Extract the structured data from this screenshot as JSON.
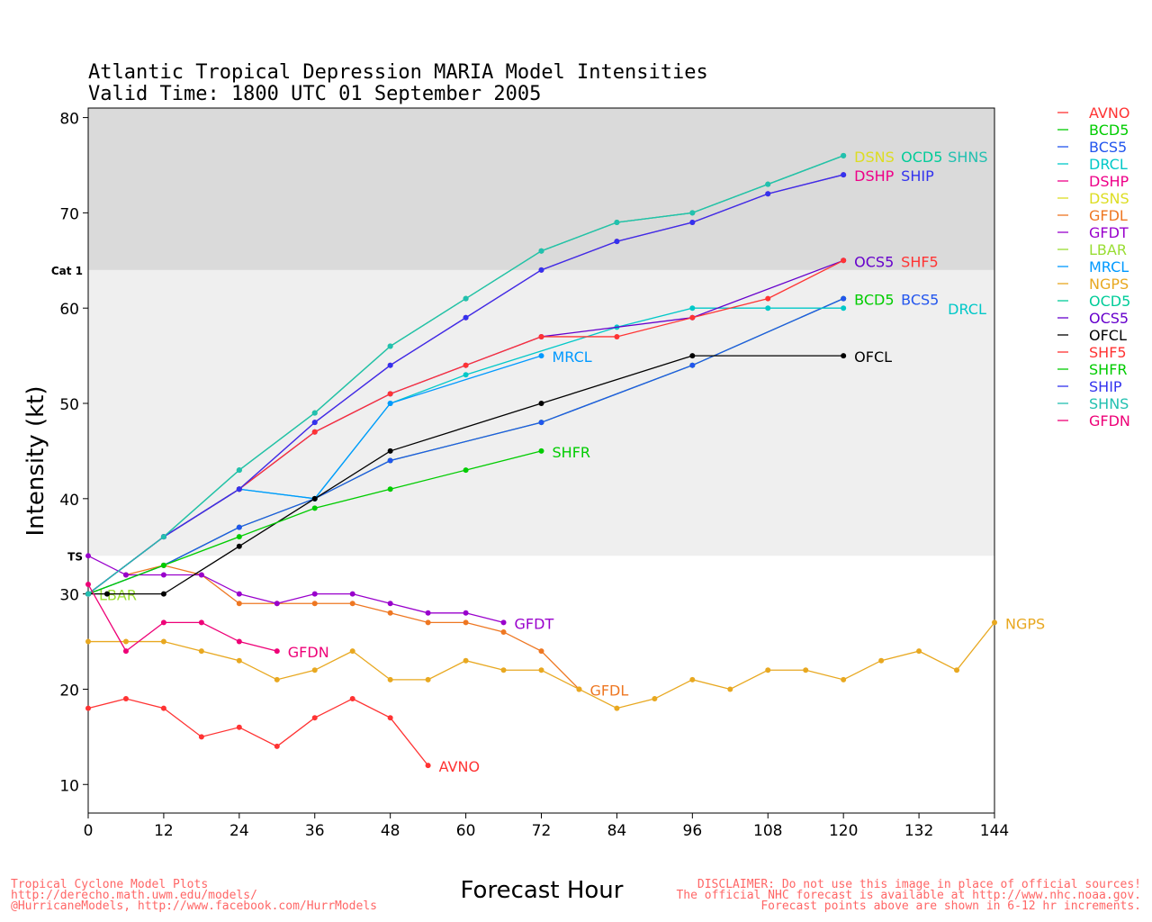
{
  "chart_data": {
    "type": "line",
    "title": "Atlantic Tropical Depression MARIA Model Intensities",
    "subtitle": "Valid Time: 1800 UTC 01 September 2005",
    "xlabel": "Forecast Hour",
    "ylabel": "Intensity (kt)",
    "xlim": [
      0,
      144
    ],
    "ylim": [
      7,
      81
    ],
    "xticks": [
      0,
      12,
      24,
      36,
      48,
      60,
      72,
      84,
      96,
      108,
      120,
      132,
      144
    ],
    "yticks": [
      10,
      20,
      30,
      40,
      50,
      60,
      70,
      80
    ],
    "bands": [
      {
        "label": "TS",
        "from": 34,
        "to": 64,
        "color": "#efefef"
      },
      {
        "label": "Cat 1",
        "from": 64,
        "to": 81,
        "color": "#dadada"
      }
    ],
    "legend_position": "right",
    "series": [
      {
        "name": "AVNO",
        "color": "#ff3333",
        "x": [
          0,
          6,
          12,
          18,
          24,
          30,
          36,
          42,
          48,
          54
        ],
        "y": [
          18,
          19,
          18,
          15,
          16,
          14,
          17,
          19,
          17,
          12
        ],
        "end_label": true
      },
      {
        "name": "BCD5",
        "color": "#00cc00",
        "x": [
          0,
          12,
          24,
          36,
          48,
          72,
          96,
          120
        ],
        "y": [
          30,
          33,
          37,
          40,
          44,
          48,
          54,
          61
        ],
        "end_label": true
      },
      {
        "name": "BCS5",
        "color": "#2255ee",
        "x": [
          0,
          12,
          24,
          36,
          48,
          72,
          96,
          120
        ],
        "y": [
          30,
          33,
          37,
          40,
          44,
          48,
          54,
          61
        ],
        "end_label": true
      },
      {
        "name": "DRCL",
        "color": "#00c8c8",
        "x": [
          0,
          12,
          24,
          36,
          48,
          60,
          84,
          96,
          108,
          120
        ],
        "y": [
          30,
          36,
          41,
          40,
          50,
          53,
          58,
          60,
          60,
          60
        ],
        "end_label": true
      },
      {
        "name": "DSHP",
        "color": "#ee0088",
        "x": [
          0,
          12,
          24,
          36,
          48,
          60,
          72,
          84,
          96,
          108,
          120
        ],
        "y": [
          30,
          36,
          41,
          48,
          54,
          59,
          64,
          67,
          69,
          72,
          74
        ],
        "end_label": true
      },
      {
        "name": "DSNS",
        "color": "#dddd22",
        "x": [
          0,
          12,
          24,
          36,
          48,
          60,
          72,
          84,
          96,
          108,
          120
        ],
        "y": [
          30,
          36,
          43,
          49,
          56,
          61,
          66,
          69,
          70,
          73,
          76
        ],
        "end_label": true
      },
      {
        "name": "GFDL",
        "color": "#ee7722",
        "x": [
          6,
          12,
          18,
          24,
          30,
          36,
          42,
          48,
          54,
          60,
          66,
          72,
          78
        ],
        "y": [
          32,
          33,
          32,
          29,
          29,
          29,
          29,
          28,
          27,
          27,
          26,
          24,
          20
        ],
        "end_label": true
      },
      {
        "name": "GFDT",
        "color": "#9900cc",
        "x": [
          0,
          6,
          12,
          18,
          24,
          30,
          36,
          42,
          48,
          54,
          60,
          66
        ],
        "y": [
          34,
          32,
          32,
          32,
          30,
          29,
          30,
          30,
          29,
          28,
          28,
          27
        ],
        "end_label": true
      },
      {
        "name": "LBAR",
        "color": "#99dd33",
        "x": [
          0
        ],
        "y": [
          30
        ],
        "end_label": true
      },
      {
        "name": "MRCL",
        "color": "#0099ff",
        "x": [
          0,
          12,
          24,
          36,
          48,
          72
        ],
        "y": [
          30,
          36,
          41,
          40,
          50,
          55
        ],
        "end_label": true
      },
      {
        "name": "NGPS",
        "color": "#e8a820",
        "x": [
          0,
          6,
          12,
          18,
          24,
          30,
          36,
          42,
          48,
          54,
          60,
          66,
          72,
          78,
          84,
          90,
          96,
          102,
          108,
          114,
          120,
          126,
          132,
          138,
          144
        ],
        "y": [
          25,
          25,
          25,
          24,
          23,
          21,
          22,
          24,
          21,
          21,
          23,
          22,
          22,
          20,
          18,
          19,
          21,
          20,
          22,
          22,
          21,
          23,
          24,
          22,
          27
        ],
        "end_label": true
      },
      {
        "name": "OCD5",
        "color": "#00cc99",
        "x": [
          0,
          12,
          24,
          36,
          48,
          60,
          72,
          84,
          96,
          108,
          120
        ],
        "y": [
          30,
          36,
          43,
          49,
          56,
          61,
          66,
          69,
          70,
          73,
          76
        ],
        "end_label": true
      },
      {
        "name": "OCS5",
        "color": "#6600cc",
        "x": [
          0,
          12,
          24,
          36,
          48,
          60,
          72,
          96,
          120
        ],
        "y": [
          30,
          36,
          41,
          47,
          51,
          54,
          57,
          59,
          65
        ],
        "end_label": true
      },
      {
        "name": "OFCL",
        "color": "#000000",
        "x": [
          0,
          3,
          12,
          24,
          36,
          48,
          72,
          96,
          120
        ],
        "y": [
          30,
          30,
          30,
          35,
          40,
          45,
          50,
          55,
          55
        ],
        "end_label": true
      },
      {
        "name": "SHF5",
        "color": "#ff3333",
        "x": [
          0,
          12,
          24,
          36,
          48,
          60,
          72,
          84,
          96,
          108,
          120
        ],
        "y": [
          30,
          36,
          41,
          47,
          51,
          54,
          57,
          57,
          59,
          61,
          65
        ],
        "end_label": true
      },
      {
        "name": "SHFR",
        "color": "#00cc00",
        "x": [
          0,
          12,
          24,
          36,
          48,
          60,
          72
        ],
        "y": [
          30,
          33,
          36,
          39,
          41,
          43,
          45
        ],
        "end_label": true
      },
      {
        "name": "SHIP",
        "color": "#3333ee",
        "x": [
          0,
          12,
          24,
          36,
          48,
          60,
          72,
          84,
          96,
          108,
          120
        ],
        "y": [
          30,
          36,
          41,
          48,
          54,
          59,
          64,
          67,
          69,
          72,
          74
        ],
        "end_label": true
      },
      {
        "name": "SHNS",
        "color": "#22c0b0",
        "x": [
          0,
          12,
          24,
          36,
          48,
          60,
          72,
          84,
          96,
          108,
          120
        ],
        "y": [
          30,
          36,
          43,
          49,
          56,
          61,
          66,
          69,
          70,
          73,
          76
        ],
        "end_label": true
      },
      {
        "name": "GFDN",
        "color": "#ee0077",
        "x": [
          0,
          6,
          12,
          18,
          24,
          30
        ],
        "y": [
          31,
          24,
          27,
          27,
          25,
          24
        ],
        "end_label": true
      }
    ]
  },
  "footer": {
    "left": [
      "Tropical Cyclone Model Plots",
      "http://derecho.math.uwm.edu/models/",
      "@HurricaneModels, http://www.facebook.com/HurrModels"
    ],
    "right": [
      "DISCLAIMER: Do not use this image in place of official sources!",
      "The official NHC forecast is available at http://www.nhc.noaa.gov.",
      "Forecast points above are shown in 6-12 hr increments."
    ]
  }
}
